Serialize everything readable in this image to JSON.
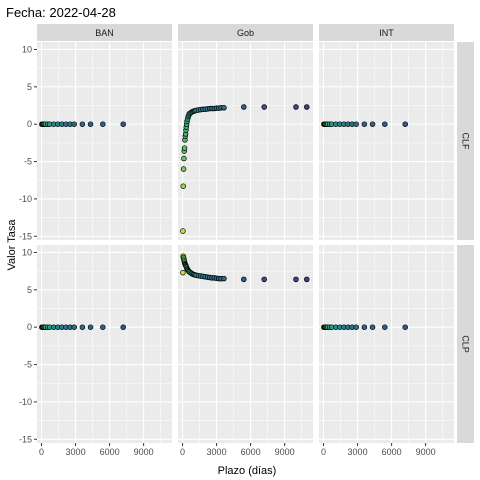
{
  "chart_data": {
    "type": "scatter",
    "title": "Fecha: 2022-04-28",
    "xlabel": "Plazo (días)",
    "ylabel": "Valor Tasa",
    "facet_columns": [
      "BAN",
      "Gob",
      "INT"
    ],
    "facet_rows": [
      "CLF",
      "CLP"
    ],
    "xlim": [
      -400,
      11500
    ],
    "ylim": [
      -15.5,
      11
    ],
    "x_ticks": [
      0,
      3000,
      6000,
      9000
    ],
    "x_tick_labels": [
      "0",
      "3000",
      "6000",
      "9000"
    ],
    "y_ticks": [
      -15,
      -10,
      -5,
      0,
      5,
      10
    ],
    "y_tick_labels": [
      "-15",
      "-10",
      "-5",
      "0",
      "5",
      "10"
    ],
    "color_scale": "viridis (reversed: yellow = short plazo, purple = long plazo)",
    "grid": true,
    "legend": "none",
    "panels": [
      {
        "column": "BAN",
        "row": "CLF",
        "points": [
          [
            30,
            0
          ],
          [
            60,
            0
          ],
          [
            90,
            0
          ],
          [
            120,
            0
          ],
          [
            180,
            0
          ],
          [
            270,
            0
          ],
          [
            360,
            0
          ],
          [
            540,
            0
          ],
          [
            720,
            0
          ],
          [
            1080,
            0
          ],
          [
            1440,
            0
          ],
          [
            1800,
            0
          ],
          [
            2160,
            0
          ],
          [
            2520,
            0
          ],
          [
            2880,
            0
          ],
          [
            3600,
            0
          ],
          [
            4320,
            0
          ],
          [
            5400,
            0
          ],
          [
            7200,
            0
          ]
        ]
      },
      {
        "column": "Gob",
        "row": "CLF",
        "points": [
          [
            30,
            -14.3
          ],
          [
            60,
            -8.3
          ],
          [
            90,
            -6
          ],
          [
            120,
            -4.6
          ],
          [
            150,
            -3.6
          ],
          [
            180,
            -3.2
          ],
          [
            210,
            -2.1
          ],
          [
            240,
            -1.6
          ],
          [
            270,
            -1.3
          ],
          [
            300,
            -0.8
          ],
          [
            330,
            -0.4
          ],
          [
            360,
            0
          ],
          [
            400,
            0.4
          ],
          [
            450,
            0.7
          ],
          [
            500,
            1
          ],
          [
            550,
            1.2
          ],
          [
            600,
            1.4
          ],
          [
            700,
            1.5
          ],
          [
            800,
            1.6
          ],
          [
            900,
            1.7
          ],
          [
            1000,
            1.75
          ],
          [
            1100,
            1.8
          ],
          [
            1200,
            1.85
          ],
          [
            1400,
            1.9
          ],
          [
            1600,
            1.95
          ],
          [
            1800,
            2
          ],
          [
            2000,
            2
          ],
          [
            2200,
            2.05
          ],
          [
            2400,
            2.1
          ],
          [
            2600,
            2.1
          ],
          [
            2800,
            2.1
          ],
          [
            3000,
            2.15
          ],
          [
            3200,
            2.15
          ],
          [
            3400,
            2.2
          ],
          [
            3650,
            2.2
          ],
          [
            5400,
            2.3
          ],
          [
            7200,
            2.3
          ],
          [
            10000,
            2.3
          ],
          [
            10950,
            2.3
          ]
        ]
      },
      {
        "column": "INT",
        "row": "CLF",
        "points": [
          [
            30,
            0
          ],
          [
            60,
            0
          ],
          [
            90,
            0
          ],
          [
            120,
            0
          ],
          [
            180,
            0
          ],
          [
            270,
            0
          ],
          [
            360,
            0
          ],
          [
            540,
            0
          ],
          [
            720,
            0
          ],
          [
            1080,
            0
          ],
          [
            1440,
            0
          ],
          [
            1800,
            0
          ],
          [
            2160,
            0
          ],
          [
            2520,
            0
          ],
          [
            2880,
            0
          ],
          [
            3600,
            0
          ],
          [
            4320,
            0
          ],
          [
            5400,
            0
          ],
          [
            7200,
            0
          ]
        ]
      },
      {
        "column": "BAN",
        "row": "CLP",
        "points": [
          [
            30,
            0
          ],
          [
            60,
            0
          ],
          [
            90,
            0
          ],
          [
            120,
            0
          ],
          [
            180,
            0
          ],
          [
            270,
            0
          ],
          [
            360,
            0
          ],
          [
            540,
            0
          ],
          [
            720,
            0
          ],
          [
            1080,
            0
          ],
          [
            1440,
            0
          ],
          [
            1800,
            0
          ],
          [
            2160,
            0
          ],
          [
            2520,
            0
          ],
          [
            2880,
            0
          ],
          [
            3600,
            0
          ],
          [
            4320,
            0
          ],
          [
            5400,
            0
          ],
          [
            7200,
            0
          ]
        ]
      },
      {
        "column": "Gob",
        "row": "CLP",
        "points": [
          [
            30,
            7.3
          ],
          [
            60,
            9.5
          ],
          [
            90,
            9.3
          ],
          [
            120,
            9.1
          ],
          [
            150,
            8.9
          ],
          [
            180,
            8.7
          ],
          [
            210,
            8.5
          ],
          [
            240,
            8.4
          ],
          [
            270,
            8.3
          ],
          [
            300,
            8.2
          ],
          [
            330,
            8.1
          ],
          [
            360,
            8
          ],
          [
            400,
            7.8
          ],
          [
            450,
            7.7
          ],
          [
            500,
            7.6
          ],
          [
            550,
            7.5
          ],
          [
            600,
            7.4
          ],
          [
            700,
            7.3
          ],
          [
            800,
            7.2
          ],
          [
            900,
            7.1
          ],
          [
            1000,
            7.05
          ],
          [
            1100,
            7
          ],
          [
            1200,
            6.95
          ],
          [
            1400,
            6.9
          ],
          [
            1600,
            6.85
          ],
          [
            1800,
            6.8
          ],
          [
            2000,
            6.75
          ],
          [
            2200,
            6.7
          ],
          [
            2400,
            6.65
          ],
          [
            2600,
            6.6
          ],
          [
            2800,
            6.6
          ],
          [
            3000,
            6.55
          ],
          [
            3200,
            6.5
          ],
          [
            3400,
            6.5
          ],
          [
            3650,
            6.5
          ],
          [
            5400,
            6.4
          ],
          [
            7200,
            6.4
          ],
          [
            10000,
            6.4
          ],
          [
            10950,
            6.4
          ]
        ]
      },
      {
        "column": "INT",
        "row": "CLP",
        "points": [
          [
            30,
            0
          ],
          [
            60,
            0
          ],
          [
            90,
            0
          ],
          [
            120,
            0
          ],
          [
            180,
            0
          ],
          [
            270,
            0
          ],
          [
            360,
            0
          ],
          [
            540,
            0
          ],
          [
            720,
            0
          ],
          [
            1080,
            0
          ],
          [
            1440,
            0
          ],
          [
            1800,
            0
          ],
          [
            2160,
            0
          ],
          [
            2520,
            0
          ],
          [
            2880,
            0
          ],
          [
            3600,
            0
          ],
          [
            4320,
            0
          ],
          [
            5400,
            0
          ],
          [
            7200,
            0
          ]
        ]
      }
    ]
  },
  "colors": {
    "panel_bg": "#EBEBEB",
    "strip_bg": "#D9D9D9",
    "grid_major": "#FFFFFF",
    "point_stroke": "#000000",
    "palette_low": "#FDE725",
    "palette_mid": "#21918C",
    "palette_high": "#440154"
  }
}
